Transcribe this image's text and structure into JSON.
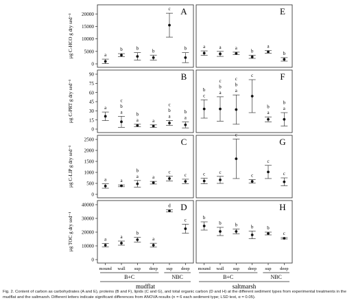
{
  "chart_data": [
    {
      "type": "scatter",
      "panel": "A",
      "site": "mudflat",
      "ylabel": "µg C-HCO g dry sed⁻¹",
      "ylim": [
        0,
        22000
      ],
      "yticks": [
        "0",
        "5000",
        "10000",
        "15000",
        "20000"
      ],
      "categories": [
        "mound",
        "wall",
        "sup",
        "deep",
        "sup",
        "deep"
      ],
      "values": [
        1000,
        3500,
        3000,
        2500,
        15500,
        2500
      ],
      "errors": [
        900,
        600,
        1500,
        1000,
        4800,
        2000
      ],
      "letters": [
        "a",
        "b",
        "b",
        "b",
        "c",
        "b"
      ]
    },
    {
      "type": "scatter",
      "panel": "E",
      "site": "saltmarsh",
      "ylim": [
        0,
        22000
      ],
      "categories": [
        "mound",
        "wall",
        "sup",
        "deep",
        "sup",
        "deep"
      ],
      "values": [
        4300,
        4000,
        4200,
        2800,
        4800,
        1800
      ],
      "errors": [
        900,
        1000,
        500,
        600,
        500,
        700
      ],
      "letters": [
        "a",
        "a",
        "a",
        "b",
        "a",
        "b"
      ]
    },
    {
      "type": "scatter",
      "panel": "B",
      "site": "mudflat",
      "ylabel": "µg C-PRT g dry sed⁻¹",
      "ylim": [
        0,
        90
      ],
      "yticks": [
        "0",
        "15",
        "30",
        "45",
        "60",
        "75",
        "90"
      ],
      "categories": [
        "mound",
        "wall",
        "sup",
        "deep",
        "sup",
        "deep"
      ],
      "values": [
        21,
        12,
        6,
        5,
        10,
        7
      ],
      "errors": [
        7,
        9,
        2,
        2,
        4,
        5
      ],
      "letters": [
        "a",
        "c\nb\na",
        "b\na",
        "a",
        "c\nb\na",
        "b\na"
      ]
    },
    {
      "type": "scatter",
      "panel": "F",
      "site": "saltmarsh",
      "ylim": [
        0,
        90
      ],
      "categories": [
        "mound",
        "wall",
        "sup",
        "deep",
        "sup",
        "deep"
      ],
      "values": [
        33,
        33,
        32,
        54,
        16,
        16
      ],
      "errors": [
        15,
        20,
        24,
        27,
        4,
        11
      ],
      "letters": [
        "b\nc",
        "c\nb\na",
        "c\nb\na",
        "c",
        "b\na",
        "b\na"
      ]
    },
    {
      "type": "scatter",
      "panel": "C",
      "site": "mudflat",
      "ylabel": "µg C-LIP g dry sed⁻¹",
      "ylim": [
        0,
        2500
      ],
      "yticks": [
        "0",
        "500",
        "1000",
        "1500",
        "2000",
        "2500"
      ],
      "categories": [
        "mound",
        "wall",
        "sup",
        "deep",
        "sup",
        "deep"
      ],
      "values": [
        380,
        390,
        480,
        530,
        720,
        590
      ],
      "errors": [
        100,
        40,
        150,
        60,
        110,
        100
      ],
      "letters": [
        "a",
        "a",
        "b\na",
        "a",
        "c",
        "c"
      ]
    },
    {
      "type": "scatter",
      "panel": "G",
      "site": "saltmarsh",
      "ylim": [
        0,
        2500
      ],
      "categories": [
        "mound",
        "wall",
        "sup",
        "deep",
        "sup",
        "deep"
      ],
      "values": [
        610,
        660,
        1620,
        590,
        1020,
        570
      ],
      "errors": [
        130,
        160,
        900,
        80,
        300,
        180
      ],
      "letters": [
        "c",
        "c",
        "c",
        "c",
        "c",
        "c"
      ]
    },
    {
      "type": "scatter",
      "panel": "D",
      "site": "mudflat",
      "ylabel": "µg TOC g dry sed⁻¹",
      "ylim": [
        0,
        40000
      ],
      "yticks": [
        "0",
        "10000",
        "20000",
        "30000",
        "40000"
      ],
      "categories": [
        "mound",
        "wall",
        "sup",
        "deep",
        "sup",
        "deep"
      ],
      "values": [
        10500,
        12000,
        14500,
        10500,
        35500,
        22500
      ],
      "errors": [
        1200,
        1500,
        1700,
        1400,
        700,
        3300
      ],
      "letters": [
        "a",
        "a",
        "b",
        "a",
        "d",
        "c"
      ]
    },
    {
      "type": "scatter",
      "panel": "H",
      "site": "saltmarsh",
      "ylim": [
        0,
        40000
      ],
      "categories": [
        "mound",
        "wall",
        "sup",
        "deep",
        "sup",
        "deep"
      ],
      "values": [
        24500,
        20500,
        20500,
        18000,
        19000,
        15500
      ],
      "errors": [
        3000,
        3000,
        1800,
        2800,
        1000,
        500
      ],
      "letters": [
        "b",
        "b",
        "b",
        "b",
        "b",
        "c"
      ]
    }
  ],
  "xaxis": {
    "categories": [
      "mound",
      "wall",
      "sup",
      "deep",
      "sup",
      "deep"
    ],
    "groups": [
      "B+C",
      "NBC"
    ],
    "sites": [
      "mudflat",
      "saltmarsh"
    ]
  },
  "caption": "Fig. 2. Content of carbon as carbohydrates (A and E), proteins (B and F), lipids (C and G), and total organic carbon (D and H) at the different sediment types from experimental treatments in the mudflat and the saltmarsh. Different letters indicate significant differences from ANOVA results (n = 6 each sediment type; LSD test, α = 0.05)."
}
